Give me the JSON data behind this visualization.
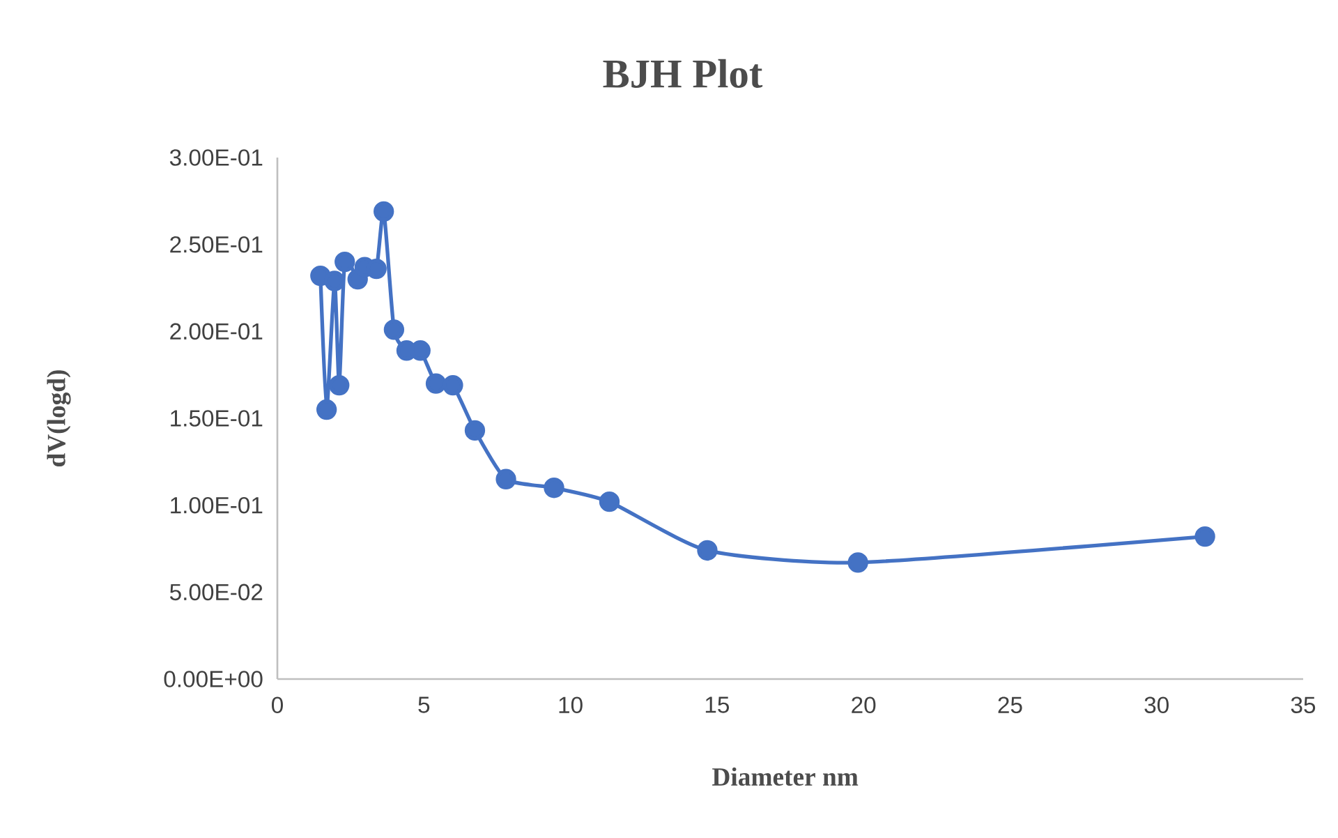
{
  "chart_data": {
    "type": "line",
    "title": "BJH Plot",
    "xlabel": "Diameter nm",
    "ylabel": "dV(logd)",
    "x": [
      1.47,
      1.68,
      1.95,
      2.11,
      2.3,
      2.74,
      2.98,
      3.38,
      3.63,
      3.98,
      4.41,
      4.88,
      5.41,
      5.99,
      6.74,
      7.8,
      9.44,
      11.33,
      14.67,
      19.81,
      31.65
    ],
    "values": [
      0.232,
      0.155,
      0.229,
      0.169,
      0.24,
      0.23,
      0.237,
      0.236,
      0.269,
      0.201,
      0.189,
      0.189,
      0.17,
      0.169,
      0.143,
      0.115,
      0.11,
      0.102,
      0.074,
      0.067,
      0.082
    ],
    "color": "#4472c4",
    "marker": "circle",
    "line_style": "solid",
    "xlim": [
      0,
      35
    ],
    "xticks": [
      0,
      5,
      10,
      15,
      20,
      25,
      30,
      35
    ],
    "ylim": [
      0,
      0.3
    ],
    "yticks": [
      {
        "value": 0,
        "label": "0.00E+00"
      },
      {
        "value": 0.05,
        "label": "5.00E-02"
      },
      {
        "value": 0.1,
        "label": "1.00E-01"
      },
      {
        "value": 0.15,
        "label": "1.50E-01"
      },
      {
        "value": 0.2,
        "label": "2.00E-01"
      },
      {
        "value": 0.25,
        "label": "2.50E-01"
      },
      {
        "value": 0.3,
        "label": "3.00E-01"
      }
    ]
  }
}
